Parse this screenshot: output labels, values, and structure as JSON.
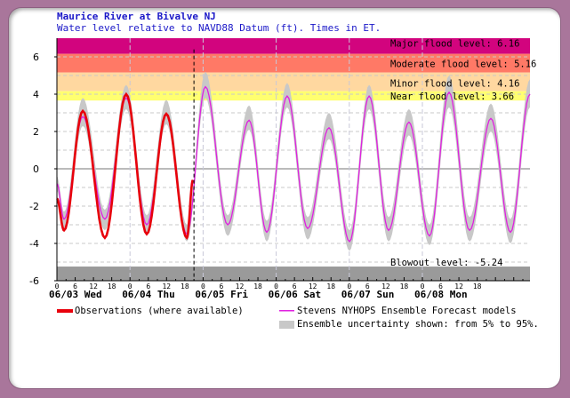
{
  "title": "Maurice River at Bivalve NJ",
  "subtitle": "Water level relative to NAVD88 Datum (ft). Times in ET.",
  "chart_data": {
    "type": "line",
    "title": "Maurice River at Bivalve NJ",
    "subtitle": "Water level relative to NAVD88 Datum (ft). Times in ET.",
    "ylim": [
      -6,
      7
    ],
    "yticks": [
      6,
      4,
      2,
      0,
      -2,
      -4,
      -6
    ],
    "xlim": [
      "06/03 00:00",
      "06/09 11:20"
    ],
    "grid": true,
    "hour_ticks": [
      "0",
      "6",
      "12",
      "18"
    ],
    "days": [
      {
        "label": "06/03 Wed",
        "date": "06/03"
      },
      {
        "label": "06/04 Thu",
        "date": "06/04"
      },
      {
        "label": "06/05 Fri",
        "date": "06/05"
      },
      {
        "label": "06/06 Sat",
        "date": "06/06"
      },
      {
        "label": "06/07 Sun",
        "date": "06/07"
      },
      {
        "label": "06/08 Mon",
        "date": "06/08"
      }
    ],
    "now_time": "06/04 21:00",
    "levels": [
      {
        "label": "Major flood level: 6.16",
        "from": 6.16,
        "to": 7,
        "color": "#d2047e"
      },
      {
        "label": "Moderate flood level: 5.16",
        "from": 5.16,
        "to": 6.16,
        "color": "#ff7966"
      },
      {
        "label": "Minor flood level: 4.16",
        "from": 4.16,
        "to": 5.16,
        "color": "#ffd8a0"
      },
      {
        "label": "Near flood level: 3.66",
        "from": 3.66,
        "to": 4.16,
        "color": "#ffff70"
      },
      {
        "label": "Blowout level: -5.24",
        "from": -6,
        "to": -5.24,
        "color": "#9a9a9a"
      }
    ],
    "series": [
      {
        "name": "Observations (where available)",
        "color": "#e8000b",
        "points": [
          [
            "06/03 00:00",
            -1.6
          ],
          [
            "06/03 02:20",
            -3.3
          ],
          [
            "06/03 08:30",
            3.1
          ],
          [
            "06/03 15:45",
            -3.7
          ],
          [
            "06/03 22:45",
            4.0
          ],
          [
            "06/04 05:30",
            -3.5
          ],
          [
            "06/04 11:55",
            2.95
          ],
          [
            "06/04 18:40",
            -3.7
          ],
          [
            "06/04 20:40",
            -0.6
          ]
        ]
      },
      {
        "name": "Stevens NYHOPS Ensemble Forecast models",
        "color": "#e020e0",
        "band_name": "Ensemble uncertainty shown: from 5% to 95%.",
        "band_color": "#c8c8c8",
        "points": [
          [
            "06/03 00:00",
            -0.8,
            -1.2,
            -0.4
          ],
          [
            "06/03 02:20",
            -2.7,
            -3.2,
            -2.3
          ],
          [
            "06/03 08:30",
            2.8,
            2.3,
            3.8
          ],
          [
            "06/03 15:45",
            -2.7,
            -3.3,
            -2.2
          ],
          [
            "06/03 22:45",
            3.8,
            3.2,
            4.5
          ],
          [
            "06/04 05:30",
            -3.0,
            -3.5,
            -2.5
          ],
          [
            "06/04 11:55",
            2.9,
            2.4,
            3.7
          ],
          [
            "06/04 18:40",
            -3.5,
            -3.9,
            -3.0
          ],
          [
            "06/05 00:45",
            4.4,
            3.8,
            5.2
          ],
          [
            "06/05 08:05",
            -3.0,
            -3.6,
            -2.5
          ],
          [
            "06/05 15:05",
            2.6,
            2.1,
            3.4
          ],
          [
            "06/05 20:55",
            -3.4,
            -3.9,
            -2.8
          ],
          [
            "06/06 03:35",
            3.9,
            3.3,
            4.6
          ],
          [
            "06/06 10:20",
            -3.2,
            -3.8,
            -2.6
          ],
          [
            "06/06 17:20",
            2.2,
            1.6,
            3.0
          ],
          [
            "06/07 00:05",
            -3.9,
            -4.4,
            -3.3
          ],
          [
            "06/07 06:30",
            3.9,
            3.2,
            4.5
          ],
          [
            "06/07 12:55",
            -3.3,
            -3.9,
            -2.6
          ],
          [
            "06/07 19:35",
            2.5,
            1.8,
            3.2
          ],
          [
            "06/08 02:20",
            -3.6,
            -4.1,
            -3.0
          ],
          [
            "06/08 08:45",
            4.1,
            3.3,
            5.0
          ],
          [
            "06/08 15:30",
            -3.3,
            -3.9,
            -2.6
          ],
          [
            "06/08 22:30",
            2.7,
            2.0,
            3.5
          ],
          [
            "06/09 04:55",
            -3.4,
            -4.0,
            -2.7
          ],
          [
            "06/09 11:20",
            4.0,
            3.3,
            4.8
          ]
        ]
      }
    ]
  },
  "legend": {
    "observations": "Observations (where available)",
    "forecast": "Stevens NYHOPS Ensemble Forecast models",
    "uncertainty": "Ensemble uncertainty shown: from 5% to 95%."
  }
}
